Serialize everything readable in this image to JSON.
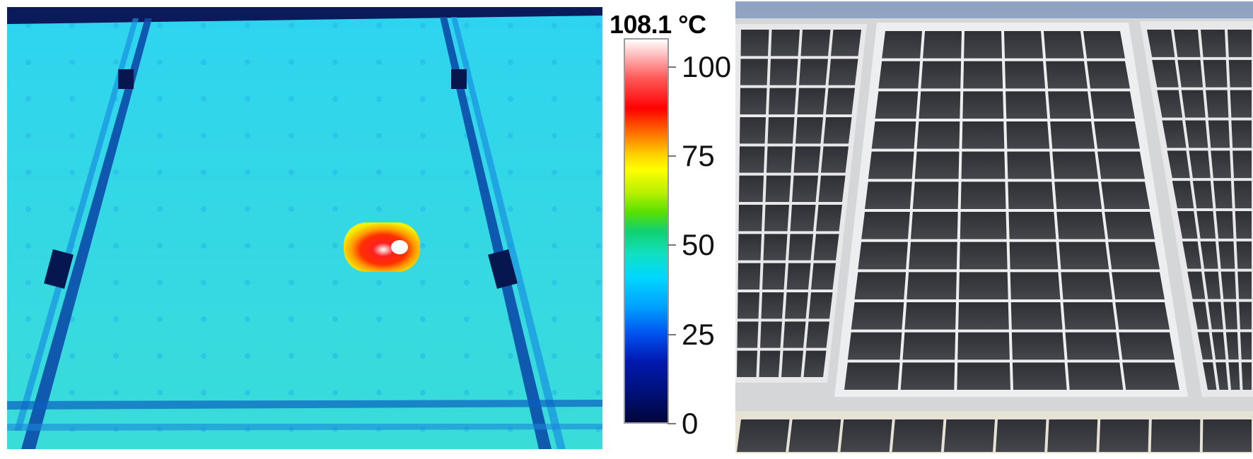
{
  "thermal_image": {
    "icon": "thermal-hotspot-image",
    "background_color": "#36d8e6",
    "hotspot_colors": [
      "#ffff00",
      "#ff0000",
      "#ffffff"
    ]
  },
  "colorbar": {
    "max_label": "108.1 °C",
    "ticks": [
      {
        "label": "100",
        "value": 100
      },
      {
        "label": "75",
        "value": 75
      },
      {
        "label": "50",
        "value": 50
      },
      {
        "label": "25",
        "value": 25
      },
      {
        "label": "0",
        "value": 0
      }
    ],
    "range": [
      0,
      108.1
    ]
  },
  "photo": {
    "icon": "solar-panel-photo",
    "sky_color": "#a6b6cc",
    "cell_color": "#3a3c42",
    "frame_color": "#d8d8d8"
  }
}
